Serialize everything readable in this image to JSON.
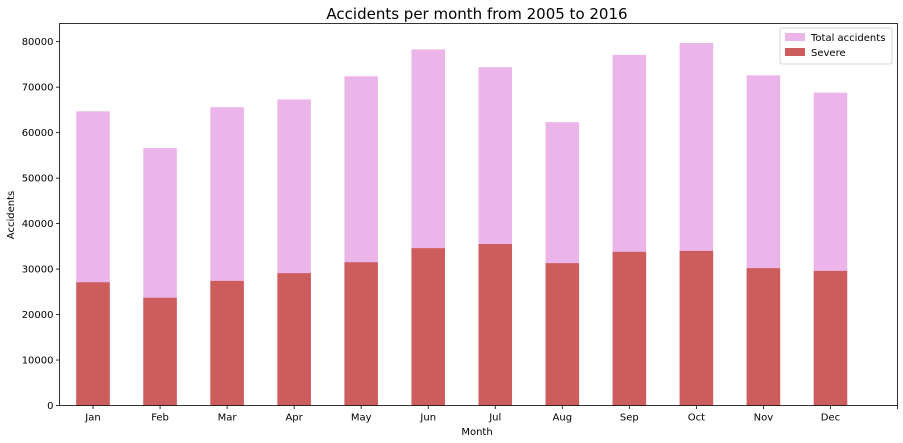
{
  "chart_data": {
    "type": "bar",
    "stacking": "overlay",
    "title": "Accidents per month from 2005 to 2016",
    "xlabel": "Month",
    "ylabel": "Accidents",
    "categories": [
      "Jan",
      "Feb",
      "Mar",
      "Apr",
      "May",
      "Jun",
      "Jul",
      "Aug",
      "Sep",
      "Oct",
      "Nov",
      "Dec"
    ],
    "series": [
      {
        "name": "Total accidents",
        "color": "#ebb5ea",
        "values": [
          64700,
          56600,
          65600,
          67300,
          72400,
          78300,
          74400,
          62300,
          77100,
          79700,
          72600,
          68800
        ]
      },
      {
        "name": "Severe",
        "color": "#cd5c5c",
        "values": [
          27100,
          23700,
          27400,
          29100,
          31500,
          34600,
          35500,
          31300,
          33800,
          34000,
          30200,
          29600
        ]
      }
    ],
    "ylim": [
      0,
      84000
    ],
    "yticks": [
      0,
      10000,
      20000,
      30000,
      40000,
      50000,
      60000,
      70000,
      80000
    ],
    "grid": false,
    "legend_position": "top-right"
  }
}
